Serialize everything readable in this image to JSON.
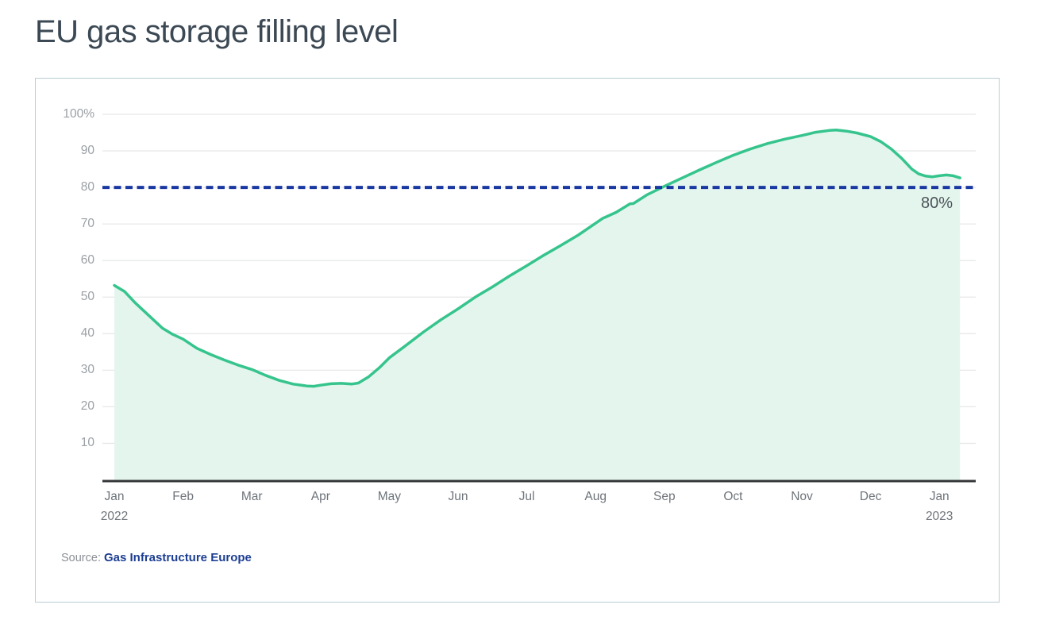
{
  "page": {
    "title": "EU gas storage filling level"
  },
  "source": {
    "label": "Source:",
    "link_text": "Gas Infrastructure Europe"
  },
  "colors": {
    "title_text": "#3c4954",
    "card_border": "#b9cdd6",
    "gridline": "#e7e8e8",
    "axis_line": "#333537",
    "y_label": "#9aa0a5",
    "x_label": "#6e747a",
    "series_line": "#36c48d",
    "series_fill": "#e4f5ee",
    "threshold_line": "#1a38a2",
    "threshold_label": "#4c5358",
    "source_label": "#8b9095",
    "source_link": "#1c3e92"
  },
  "chart_data": {
    "type": "area",
    "title": "EU gas storage filling level",
    "xlabel": "",
    "ylabel": "",
    "unit": "%",
    "ylim": [
      0,
      100
    ],
    "grid": "horizontal",
    "legend": "none",
    "y_ticks": [
      {
        "value": 100,
        "label": "100%"
      },
      {
        "value": 90,
        "label": "90"
      },
      {
        "value": 80,
        "label": "80"
      },
      {
        "value": 70,
        "label": "70"
      },
      {
        "value": 60,
        "label": "60"
      },
      {
        "value": 50,
        "label": "50"
      },
      {
        "value": 40,
        "label": "40"
      },
      {
        "value": 30,
        "label": "30"
      },
      {
        "value": 20,
        "label": "20"
      },
      {
        "value": 10,
        "label": "10"
      }
    ],
    "x_ticks": [
      {
        "month": 0,
        "label": "Jan",
        "sub": "2022"
      },
      {
        "month": 1,
        "label": "Feb",
        "sub": ""
      },
      {
        "month": 2,
        "label": "Mar",
        "sub": ""
      },
      {
        "month": 3,
        "label": "Apr",
        "sub": ""
      },
      {
        "month": 4,
        "label": "May",
        "sub": ""
      },
      {
        "month": 5,
        "label": "Jun",
        "sub": ""
      },
      {
        "month": 6,
        "label": "Jul",
        "sub": ""
      },
      {
        "month": 7,
        "label": "Aug",
        "sub": ""
      },
      {
        "month": 8,
        "label": "Sep",
        "sub": ""
      },
      {
        "month": 9,
        "label": "Oct",
        "sub": ""
      },
      {
        "month": 10,
        "label": "Nov",
        "sub": ""
      },
      {
        "month": 11,
        "label": "Dec",
        "sub": ""
      },
      {
        "month": 12,
        "label": "Jan",
        "sub": "2023"
      }
    ],
    "threshold": {
      "value": 80,
      "label": "80%"
    },
    "series": [
      {
        "name": "EU gas storage filling level (%)",
        "points": [
          [
            0.0,
            53.2
          ],
          [
            0.15,
            51.5
          ],
          [
            0.3,
            48.5
          ],
          [
            0.5,
            45.0
          ],
          [
            0.7,
            41.5
          ],
          [
            0.85,
            39.8
          ],
          [
            1.0,
            38.5
          ],
          [
            1.2,
            36.0
          ],
          [
            1.4,
            34.3
          ],
          [
            1.6,
            32.8
          ],
          [
            1.8,
            31.4
          ],
          [
            2.0,
            30.2
          ],
          [
            2.2,
            28.6
          ],
          [
            2.4,
            27.2
          ],
          [
            2.6,
            26.2
          ],
          [
            2.8,
            25.7
          ],
          [
            2.9,
            25.6
          ],
          [
            3.0,
            25.9
          ],
          [
            3.15,
            26.3
          ],
          [
            3.3,
            26.4
          ],
          [
            3.45,
            26.2
          ],
          [
            3.55,
            26.5
          ],
          [
            3.7,
            28.2
          ],
          [
            3.85,
            30.6
          ],
          [
            4.0,
            33.4
          ],
          [
            4.2,
            36.2
          ],
          [
            4.5,
            40.5
          ],
          [
            4.75,
            43.8
          ],
          [
            5.0,
            46.8
          ],
          [
            5.25,
            50.0
          ],
          [
            5.5,
            52.8
          ],
          [
            5.75,
            55.8
          ],
          [
            6.0,
            58.6
          ],
          [
            6.25,
            61.5
          ],
          [
            6.5,
            64.2
          ],
          [
            6.75,
            67.0
          ],
          [
            7.0,
            70.2
          ],
          [
            7.1,
            71.5
          ],
          [
            7.3,
            73.2
          ],
          [
            7.5,
            75.5
          ],
          [
            7.55,
            75.6
          ],
          [
            7.75,
            78.0
          ],
          [
            8.0,
            80.3
          ],
          [
            8.25,
            82.5
          ],
          [
            8.5,
            84.7
          ],
          [
            8.75,
            86.8
          ],
          [
            9.0,
            88.8
          ],
          [
            9.25,
            90.5
          ],
          [
            9.5,
            92.0
          ],
          [
            9.75,
            93.2
          ],
          [
            10.0,
            94.2
          ],
          [
            10.2,
            95.1
          ],
          [
            10.4,
            95.6
          ],
          [
            10.5,
            95.7
          ],
          [
            10.65,
            95.4
          ],
          [
            10.8,
            94.9
          ],
          [
            11.0,
            93.9
          ],
          [
            11.15,
            92.5
          ],
          [
            11.3,
            90.5
          ],
          [
            11.45,
            88.0
          ],
          [
            11.6,
            85.0
          ],
          [
            11.7,
            83.7
          ],
          [
            11.8,
            83.1
          ],
          [
            11.9,
            82.9
          ],
          [
            12.0,
            83.2
          ],
          [
            12.1,
            83.4
          ],
          [
            12.2,
            83.2
          ],
          [
            12.3,
            82.6
          ]
        ]
      }
    ]
  }
}
